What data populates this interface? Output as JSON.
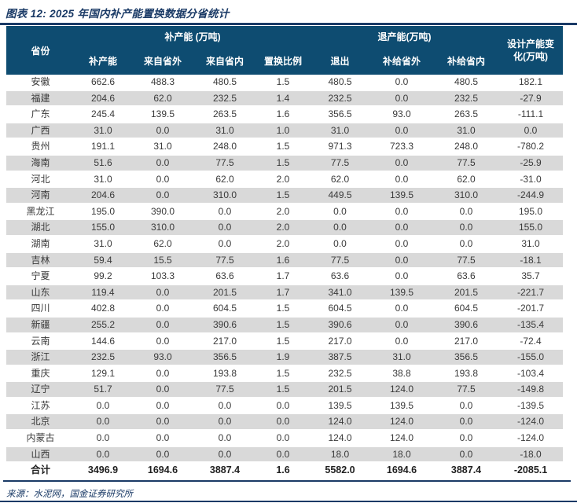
{
  "title": "图表 12: 2025 年国内补产能置换数据分省统计",
  "table": {
    "headers": {
      "province": "省份",
      "group_add": "补产能 (万吨)",
      "group_exit": "退产能(万吨)",
      "design_change": "设计产能变化(万吨)",
      "sub": [
        "补产能",
        "来自省外",
        "来自省内",
        "置换比例",
        "退出",
        "补给省外",
        "补给省内"
      ]
    },
    "rows": [
      {
        "province": "安徽",
        "values": [
          "662.6",
          "488.3",
          "480.5",
          "1.5",
          "480.5",
          "0.0",
          "480.5",
          "182.1"
        ]
      },
      {
        "province": "福建",
        "values": [
          "204.6",
          "62.0",
          "232.5",
          "1.4",
          "232.5",
          "0.0",
          "232.5",
          "-27.9"
        ]
      },
      {
        "province": "广东",
        "values": [
          "245.4",
          "139.5",
          "263.5",
          "1.6",
          "356.5",
          "93.0",
          "263.5",
          "-111.1"
        ]
      },
      {
        "province": "广西",
        "values": [
          "31.0",
          "0.0",
          "31.0",
          "1.0",
          "31.0",
          "0.0",
          "31.0",
          "0.0"
        ]
      },
      {
        "province": "贵州",
        "values": [
          "191.1",
          "31.0",
          "248.0",
          "1.5",
          "971.3",
          "723.3",
          "248.0",
          "-780.2"
        ]
      },
      {
        "province": "海南",
        "values": [
          "51.6",
          "0.0",
          "77.5",
          "1.5",
          "77.5",
          "0.0",
          "77.5",
          "-25.9"
        ]
      },
      {
        "province": "河北",
        "values": [
          "31.0",
          "0.0",
          "62.0",
          "2.0",
          "62.0",
          "0.0",
          "62.0",
          "-31.0"
        ]
      },
      {
        "province": "河南",
        "values": [
          "204.6",
          "0.0",
          "310.0",
          "1.5",
          "449.5",
          "139.5",
          "310.0",
          "-244.9"
        ]
      },
      {
        "province": "黑龙江",
        "values": [
          "195.0",
          "390.0",
          "0.0",
          "2.0",
          "0.0",
          "0.0",
          "0.0",
          "195.0"
        ]
      },
      {
        "province": "湖北",
        "values": [
          "155.0",
          "310.0",
          "0.0",
          "2.0",
          "0.0",
          "0.0",
          "0.0",
          "155.0"
        ]
      },
      {
        "province": "湖南",
        "values": [
          "31.0",
          "62.0",
          "0.0",
          "2.0",
          "0.0",
          "0.0",
          "0.0",
          "31.0"
        ]
      },
      {
        "province": "吉林",
        "values": [
          "59.4",
          "15.5",
          "77.5",
          "1.6",
          "77.5",
          "0.0",
          "77.5",
          "-18.1"
        ]
      },
      {
        "province": "宁夏",
        "values": [
          "99.2",
          "103.3",
          "63.6",
          "1.7",
          "63.6",
          "0.0",
          "63.6",
          "35.7"
        ]
      },
      {
        "province": "山东",
        "values": [
          "119.4",
          "0.0",
          "201.5",
          "1.7",
          "341.0",
          "139.5",
          "201.5",
          "-221.7"
        ]
      },
      {
        "province": "四川",
        "values": [
          "402.8",
          "0.0",
          "604.5",
          "1.5",
          "604.5",
          "0.0",
          "604.5",
          "-201.7"
        ]
      },
      {
        "province": "新疆",
        "values": [
          "255.2",
          "0.0",
          "390.6",
          "1.5",
          "390.6",
          "0.0",
          "390.6",
          "-135.4"
        ]
      },
      {
        "province": "云南",
        "values": [
          "144.6",
          "0.0",
          "217.0",
          "1.5",
          "217.0",
          "0.0",
          "217.0",
          "-72.4"
        ]
      },
      {
        "province": "浙江",
        "values": [
          "232.5",
          "93.0",
          "356.5",
          "1.9",
          "387.5",
          "31.0",
          "356.5",
          "-155.0"
        ]
      },
      {
        "province": "重庆",
        "values": [
          "129.1",
          "0.0",
          "193.8",
          "1.5",
          "232.5",
          "38.8",
          "193.8",
          "-103.4"
        ]
      },
      {
        "province": "辽宁",
        "values": [
          "51.7",
          "0.0",
          "77.5",
          "1.5",
          "201.5",
          "124.0",
          "77.5",
          "-149.8"
        ]
      },
      {
        "province": "江苏",
        "values": [
          "0.0",
          "0.0",
          "0.0",
          "0.0",
          "139.5",
          "139.5",
          "0.0",
          "-139.5"
        ]
      },
      {
        "province": "北京",
        "values": [
          "0.0",
          "0.0",
          "0.0",
          "0.0",
          "124.0",
          "124.0",
          "0.0",
          "-124.0"
        ]
      },
      {
        "province": "内蒙古",
        "values": [
          "0.0",
          "0.0",
          "0.0",
          "0.0",
          "124.0",
          "124.0",
          "0.0",
          "-124.0"
        ]
      },
      {
        "province": "山西",
        "values": [
          "0.0",
          "0.0",
          "0.0",
          "0.0",
          "18.0",
          "18.0",
          "0.0",
          "-18.0"
        ]
      }
    ],
    "total_row": {
      "province": "合计",
      "values": [
        "3496.9",
        "1694.6",
        "3887.4",
        "1.6",
        "5582.0",
        "1694.6",
        "3887.4",
        "-2085.1"
      ]
    }
  },
  "source": "来源：水泥网，国金证券研究所",
  "colors": {
    "navy": "#1a3a66",
    "header_bg": "#0e4c71",
    "stripe": "#d9d9d9",
    "cell_text": "#3a3a3a"
  }
}
